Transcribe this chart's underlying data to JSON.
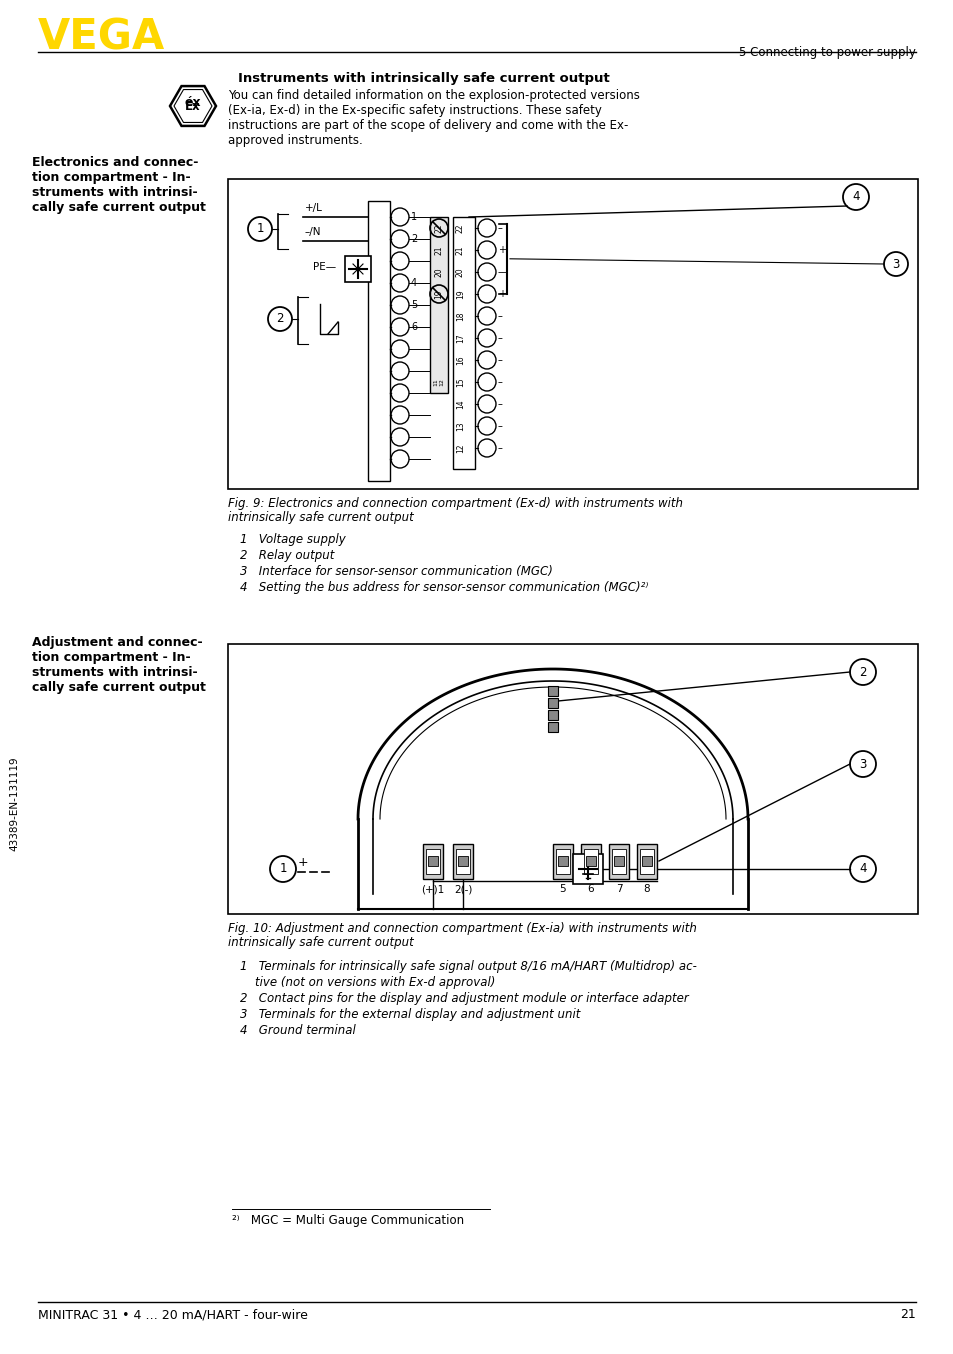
{
  "title_section": "5 Connecting to power supply",
  "vega_color": "#FFD700",
  "logo_text": "VEGA",
  "footer_text": "MINITRAC 31 • 4 … 20 mA/HART - four-wire",
  "footer_page": "21",
  "sidebar_text": "43389-EN-131119",
  "section_title": "Instruments with intrinsically safe current output",
  "section_body_lines": [
    "You can find detailed information on the explosion-protected versions",
    "(Ex-ia, Ex-d) in the Ex-specific safety instructions. These safety",
    "instructions are part of the scope of delivery and come with the Ex-",
    "approved instruments."
  ],
  "left_label_1_lines": [
    "Electronics and connec-",
    "tion compartment - In-",
    "struments with intrinsi-",
    "cally safe current output"
  ],
  "fig1_caption_lines": [
    "Fig. 9: Electronics and connection compartment (Ex-d) with instruments with",
    "intrinsically safe current output"
  ],
  "fig1_items": [
    "1   Voltage supply",
    "2   Relay output",
    "3   Interface for sensor-sensor communication (MGC)",
    "4   Setting the bus address for sensor-sensor communication (MGC)²⁾"
  ],
  "left_label_2_lines": [
    "Adjustment and connec-",
    "tion compartment - In-",
    "struments with intrinsi-",
    "cally safe current output"
  ],
  "fig2_caption_lines": [
    "Fig. 10: Adjustment and connection compartment (Ex-ia) with instruments with",
    "intrinsically safe current output"
  ],
  "fig2_items": [
    "1   Terminals for intrinsically safe signal output 8/16 mA/HART (Multidrop) ac-",
    "    tive (not on versions with Ex-d approval)",
    "2   Contact pins for the display and adjustment module or interface adapter",
    "3   Terminals for the external display and adjustment unit",
    "4   Ground terminal"
  ],
  "footnote": "²⁾   MGC = Multi Gauge Communication",
  "bg_color": "#FFFFFF",
  "text_color": "#000000"
}
